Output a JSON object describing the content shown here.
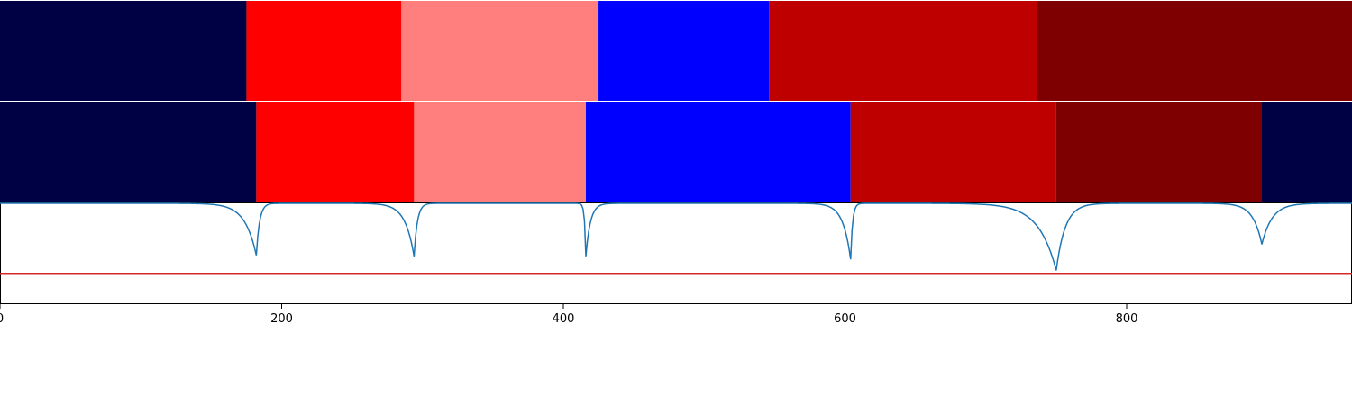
{
  "chart_data": {
    "type": "heatmap",
    "x_range": [
      0,
      960
    ],
    "x_ticks": [
      {
        "value": 0,
        "label": "0"
      },
      {
        "value": 200,
        "label": "200"
      },
      {
        "value": 400,
        "label": "400"
      },
      {
        "value": 600,
        "label": "600"
      },
      {
        "value": 800,
        "label": "800"
      }
    ],
    "rows": [
      {
        "segments": [
          {
            "start": 0,
            "end": 175,
            "color": "#000045"
          },
          {
            "start": 175,
            "end": 285,
            "color": "#ff0000"
          },
          {
            "start": 285,
            "end": 425,
            "color": "#ff7f7f"
          },
          {
            "start": 425,
            "end": 546,
            "color": "#0000ff"
          },
          {
            "start": 546,
            "end": 736,
            "color": "#bf0000"
          },
          {
            "start": 736,
            "end": 960,
            "color": "#7f0000"
          }
        ]
      },
      {
        "segments": [
          {
            "start": 0,
            "end": 182,
            "color": "#000045"
          },
          {
            "start": 182,
            "end": 294,
            "color": "#ff0000"
          },
          {
            "start": 294,
            "end": 416,
            "color": "#ff7f7f"
          },
          {
            "start": 416,
            "end": 604,
            "color": "#0000ff"
          },
          {
            "start": 604,
            "end": 750,
            "color": "#bf0000"
          },
          {
            "start": 750,
            "end": 896,
            "color": "#7f0000"
          },
          {
            "start": 896,
            "end": 960,
            "color": "#000045"
          }
        ]
      }
    ],
    "line_panel": {
      "line_color": "#1f77b4",
      "threshold": 0.3,
      "threshold_color": "#d62728",
      "y_range": [
        0,
        1
      ],
      "baseline": 1.0,
      "dips": [
        {
          "x": 182,
          "depth": 0.52,
          "left_width": 18,
          "right_width": 5
        },
        {
          "x": 294,
          "depth": 0.53,
          "left_width": 14,
          "right_width": 5
        },
        {
          "x": 416,
          "depth": 0.53,
          "left_width": 2,
          "right_width": 7
        },
        {
          "x": 604,
          "depth": 0.56,
          "left_width": 12,
          "right_width": 3
        },
        {
          "x": 750,
          "depth": 0.67,
          "left_width": 28,
          "right_width": 14
        },
        {
          "x": 896,
          "depth": 0.41,
          "left_width": 14,
          "right_width": 16
        }
      ]
    }
  }
}
